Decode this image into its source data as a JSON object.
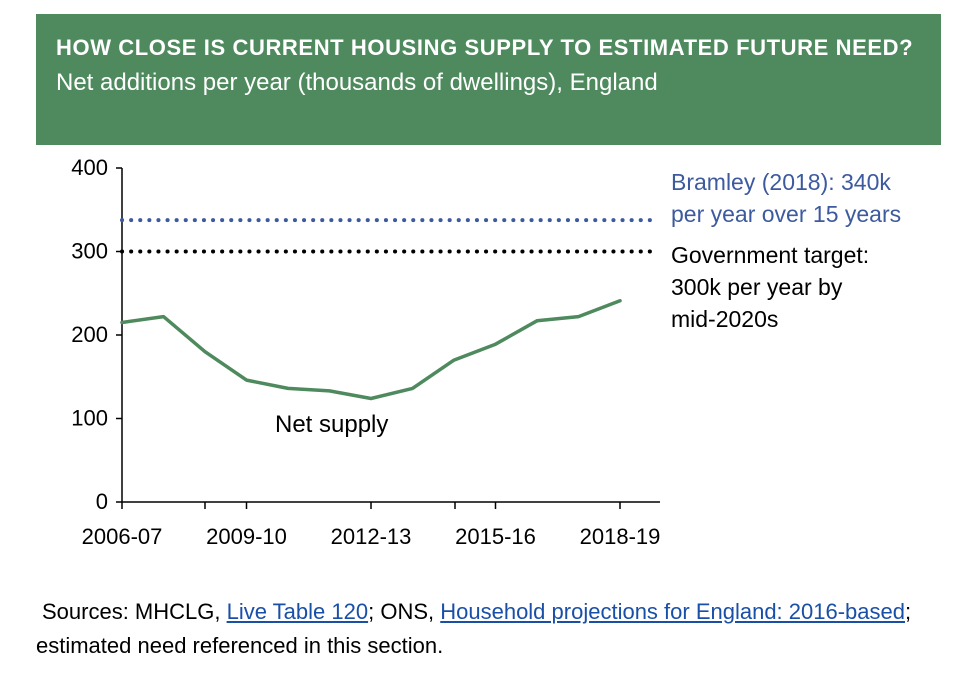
{
  "header": {
    "title": "HOW CLOSE IS CURRENT HOUSING SUPPLY TO ESTIMATED FUTURE NEED?",
    "subtitle": "Net additions per year (thousands of dwellings),  England"
  },
  "chart_data": {
    "type": "line",
    "x_tick_labels": [
      "2006-07",
      "2009-10",
      "2012-13",
      "2015-16",
      "2018-19"
    ],
    "x": [
      "2006-07",
      "2007-08",
      "2008-09",
      "2009-10",
      "2010-11",
      "2011-12",
      "2012-13",
      "2013-14",
      "2014-15",
      "2015-16",
      "2016-17",
      "2017-18",
      "2018-19"
    ],
    "series": [
      {
        "name": "Net supply",
        "color": "#4e8a5e",
        "values": [
          215,
          222,
          180,
          146,
          136,
          133,
          124,
          136,
          170,
          189,
          217,
          222,
          241
        ]
      }
    ],
    "reference_lines": [
      {
        "value": 340,
        "color": "#3d5a9e",
        "style": "dotted",
        "label_lines": [
          "Bramley (2018): 340k",
          "per year over 15 years"
        ]
      },
      {
        "value": 300,
        "color": "#000000",
        "style": "dotted",
        "label_lines": [
          "Government target:",
          "300k per year by",
          "mid-2020s"
        ]
      }
    ],
    "y_ticks": [
      0,
      100,
      200,
      300,
      400
    ],
    "ylim": [
      0,
      400
    ],
    "grid": false,
    "legend": "none"
  },
  "sources": {
    "lead": "Sources: MHCLG, ",
    "link1": "Live Table 120",
    "mid": "; ONS, ",
    "link2": "Household projections for England: 2016-based",
    "tail": "; estimated need referenced in this section."
  }
}
